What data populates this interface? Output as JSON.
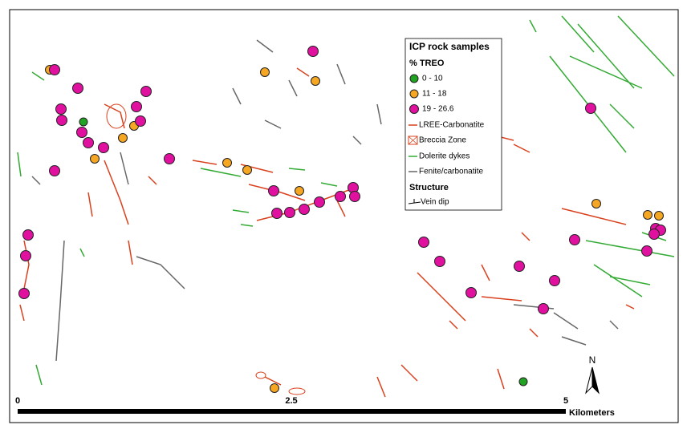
{
  "legend": {
    "title": "ICP rock samples",
    "subtitle": "% TREO",
    "classes": [
      "0 - 10",
      "11 - 18",
      "19 - 26.6"
    ],
    "features": [
      "LREE-Carbonatite",
      "Breccia Zone",
      "Dolerite dykes",
      "Fenite/carbonatite"
    ],
    "structure_title": "Structure",
    "structure": [
      "Vein dip"
    ]
  },
  "scale_bar": {
    "labels": [
      "0",
      "2.5",
      "5"
    ],
    "unit": "Kilometers"
  },
  "north_arrow": "N"
}
